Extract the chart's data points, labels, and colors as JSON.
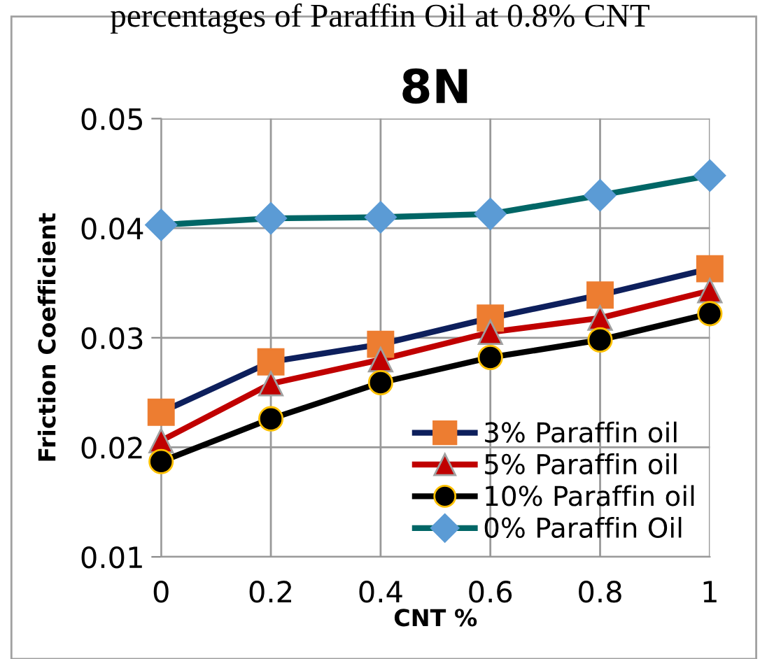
{
  "chart_data": {
    "type": "line",
    "title": "8N",
    "xlabel": "CNT %",
    "ylabel": "Friction Coefficient",
    "annotations": [
      "percentages of Paraffin Oil at 0.8% CNT"
    ],
    "x": [
      0,
      0.2,
      0.4,
      0.6,
      0.8,
      1
    ],
    "series": [
      {
        "name": "3% Paraffin oil",
        "color": "#0d1f5c",
        "colors": [
          "#ed7d31",
          "#ed7d31",
          "#ed7d31",
          "#ed7d31",
          "#ed7d31",
          "#ed7d31"
        ],
        "marker": "square",
        "values": [
          0.0232,
          0.0278,
          0.0294,
          0.0318,
          0.0339,
          0.0363
        ]
      },
      {
        "name": "5% Paraffin oil",
        "color": "#c00000",
        "colors": [
          "#c00000",
          "#c00000",
          "#c00000",
          "#c00000",
          "#c00000",
          "#c00000"
        ],
        "marker": "triangle",
        "values": [
          0.0206,
          0.0258,
          0.028,
          0.0305,
          0.0318,
          0.0343
        ]
      },
      {
        "name": "10% Paraffin oil",
        "color": "#000000",
        "colors": [
          "#000000",
          "#000000",
          "#000000",
          "#000000",
          "#000000",
          "#000000"
        ],
        "marker": "circle",
        "values": [
          0.0187,
          0.0226,
          0.0259,
          0.0282,
          0.0298,
          0.0322
        ]
      },
      {
        "name": "0% Paraffin Oil",
        "color": "#006666",
        "colors": [
          "#5b9bd5",
          "#5b9bd5",
          "#5b9bd5",
          "#5b9bd5",
          "#5b9bd5",
          "#5b9bd5"
        ],
        "marker": "diamond",
        "values": [
          0.0403,
          0.0409,
          0.041,
          0.0413,
          0.043,
          0.0448
        ]
      }
    ],
    "xlim": [
      0,
      1
    ],
    "xticks": [
      0,
      0.2,
      0.4,
      0.6,
      0.8,
      1
    ],
    "ylim": [
      0.01,
      0.05
    ],
    "yticks": [
      0.01,
      0.02,
      0.03,
      0.04,
      0.05
    ],
    "grid": true,
    "legend": "bottom right",
    "line_style": "solid"
  }
}
